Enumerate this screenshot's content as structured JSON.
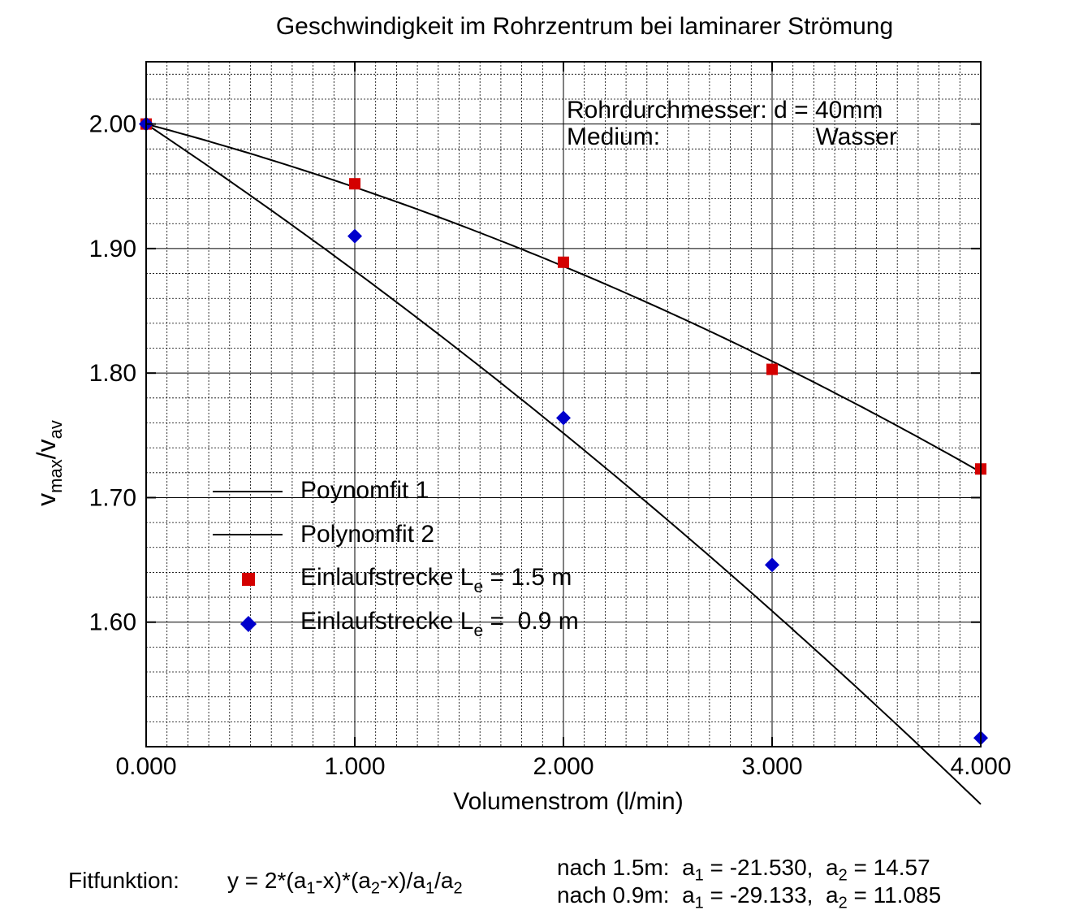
{
  "chart_data": {
    "type": "scatter",
    "title": "Geschwindigkeit im Rohrzentrum bei laminarer Strömung",
    "xlabel": "Volumenstrom (l/min)",
    "ylabel": {
      "main1": "v",
      "sub1": "max",
      "slash": "/v",
      "sub2": "av"
    },
    "xlim": [
      0,
      4
    ],
    "ylim": [
      1.5,
      2.05
    ],
    "x_ticks": [
      "0.000",
      "1.000",
      "2.000",
      "3.000",
      "4.000"
    ],
    "y_ticks": [
      "1.60",
      "1.70",
      "1.80",
      "1.90",
      "2.00"
    ],
    "grid": true,
    "legend_position": "lower-left",
    "annotation": {
      "line1": "Rohrdurchmesser: d = 40mm",
      "line2_label": "Medium:",
      "line2_value": "Wasser"
    },
    "series": [
      {
        "name": "Poynomfit 1",
        "kind": "line",
        "a1": -21.53,
        "a2": 14.57
      },
      {
        "name": "Polynomfit 2",
        "kind": "line",
        "a1": -29.133,
        "a2": 11.085
      },
      {
        "name": "Einlaufstrecke L",
        "sub": "e",
        "suffix": " = 1.5 m",
        "kind": "points",
        "marker": "square",
        "color": "#d40000",
        "x": [
          0,
          1,
          2,
          3,
          4
        ],
        "y": [
          2.0,
          1.952,
          1.889,
          1.803,
          1.723
        ]
      },
      {
        "name": "Einlaufstrecke L",
        "sub": "e",
        "suffix": " =  0.9 m",
        "kind": "points",
        "marker": "diamond",
        "color": "#0000cc",
        "x": [
          0,
          1,
          2,
          3,
          4
        ],
        "y": [
          2.0,
          1.91,
          1.764,
          1.646,
          1.507
        ]
      }
    ],
    "fit_function": {
      "label": "Fitfunktion:",
      "formula": "y = 2*(a1-x)*(a2-x)/a1/a2"
    },
    "fit_params": [
      {
        "prefix": "nach 1.5m:",
        "a1": "-21.530",
        "a2": "14.57"
      },
      {
        "prefix": "nach 0.9m:",
        "a1": "-29.133",
        "a2": "11.085"
      }
    ]
  }
}
